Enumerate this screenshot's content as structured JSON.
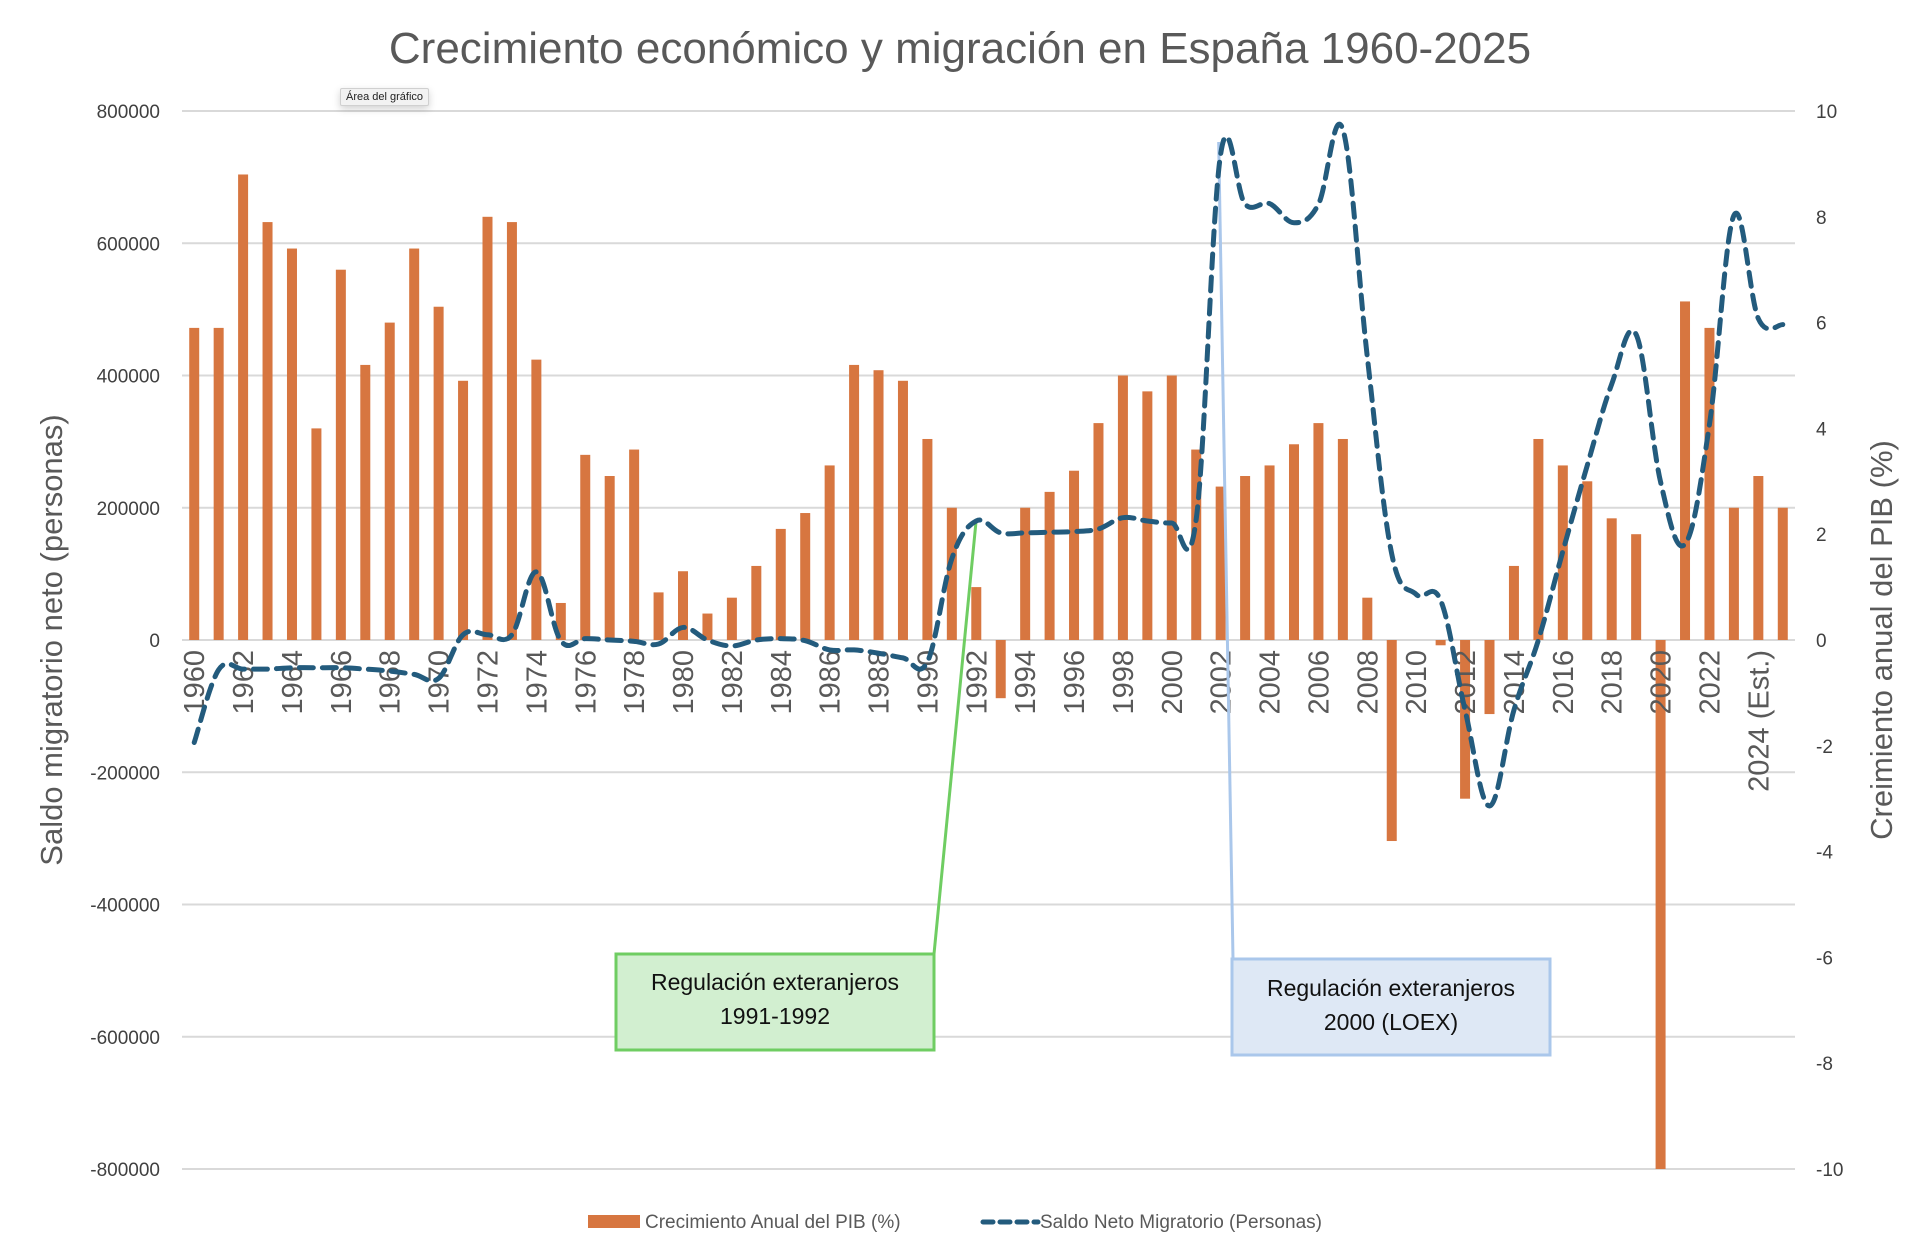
{
  "tooltip": "Área del gráfico",
  "colors": {
    "bar": "#D77640",
    "line": "#235B7D",
    "grid": "#D9D9D9",
    "note1_fill": "#D2EFD0",
    "note1_border": "#6FCD62",
    "note2_fill": "#DEE8F5",
    "note2_border": "#AAC7EB"
  },
  "chart_data": {
    "type": "bar+line",
    "title": "Crecimiento económico y migración en España 1960-2025",
    "xlabel": "",
    "ylabel_left": "Saldo migratorio neto (personas)",
    "ylabel_right": "Creimiento anual del PIB (%)",
    "ylim_left": [
      -800000,
      800000
    ],
    "ylim_right": [
      -10,
      10
    ],
    "yticks_left": [
      800000,
      600000,
      400000,
      200000,
      0,
      -200000,
      -400000,
      -600000,
      -800000
    ],
    "yticks_left_labels": [
      "800000",
      "600000",
      "400000",
      "200000",
      "0",
      "-200000",
      "-400000",
      "-600000",
      "-800000"
    ],
    "yticks_right": [
      10,
      8,
      6,
      4,
      2,
      0,
      -2,
      -4,
      -6,
      -8,
      -10
    ],
    "yticks_right_labels": [
      "10",
      "8",
      "6",
      "4",
      "2",
      "0",
      "-2",
      "-4",
      "-6",
      "-8",
      "-10"
    ],
    "grid": true,
    "legend_position": "bottom",
    "categories": [
      "1960",
      "1961",
      "1962",
      "1963",
      "1964",
      "1965",
      "1966",
      "1967",
      "1968",
      "1969",
      "1970",
      "1971",
      "1972",
      "1973",
      "1974",
      "1975",
      "1976",
      "1977",
      "1978",
      "1979",
      "1980",
      "1981",
      "1982",
      "1983",
      "1984",
      "1985",
      "1986",
      "1987",
      "1988",
      "1989",
      "1990",
      "1991",
      "1992",
      "1993",
      "1994",
      "1995",
      "1996",
      "1997",
      "1998",
      "1999",
      "2000",
      "2001",
      "2002",
      "2003",
      "2004",
      "2005",
      "2006",
      "2007",
      "2008",
      "2009",
      "2010",
      "2011",
      "2012",
      "2013",
      "2014",
      "2015",
      "2016",
      "2017",
      "2018",
      "2019",
      "2020",
      "2021",
      "2022",
      "2023",
      "2024",
      "2025"
    ],
    "tick_labels": [
      "1960",
      "1962",
      "1964",
      "1966",
      "1968",
      "1970",
      "1972",
      "1974",
      "1976",
      "1978",
      "1980",
      "1982",
      "1984",
      "1986",
      "1988",
      "1990",
      "1992",
      "1994",
      "1996",
      "1998",
      "2000",
      "2002",
      "2004",
      "2006",
      "2008",
      "2010",
      "2012",
      "2014",
      "2016",
      "2018",
      "2020",
      "2022",
      "2024 (Est.)"
    ],
    "tick_label_indices": [
      0,
      2,
      4,
      6,
      8,
      10,
      12,
      14,
      16,
      18,
      20,
      22,
      24,
      26,
      28,
      30,
      32,
      34,
      36,
      38,
      40,
      42,
      44,
      46,
      48,
      50,
      52,
      54,
      56,
      58,
      60,
      62,
      64
    ],
    "series": [
      {
        "name": "Crecimiento Anual del PIB (%)",
        "type": "bar",
        "axis": "right",
        "values": [
          5.9,
          5.9,
          8.8,
          7.9,
          7.4,
          4.0,
          7.0,
          5.2,
          6.0,
          7.4,
          6.3,
          4.9,
          8.0,
          7.9,
          5.3,
          0.7,
          3.5,
          3.1,
          3.6,
          0.9,
          1.3,
          0.5,
          0.8,
          1.4,
          2.1,
          2.4,
          3.3,
          5.2,
          5.1,
          4.9,
          3.8,
          2.5,
          1.0,
          -1.1,
          2.5,
          2.8,
          3.2,
          4.1,
          5.0,
          4.7,
          5.0,
          3.6,
          2.9,
          3.1,
          3.3,
          3.7,
          4.1,
          3.8,
          0.8,
          -3.8,
          0.0,
          -0.1,
          -3.0,
          -1.4,
          1.4,
          3.8,
          3.3,
          3.0,
          2.3,
          2.0,
          -10.0,
          6.4,
          5.9,
          2.5,
          3.1,
          2.5
        ]
      },
      {
        "name": "Saldo Neto Migratorio (Personas)",
        "type": "line",
        "axis": "left",
        "style": "dashed",
        "values": [
          -155000,
          -45000,
          -44000,
          -44000,
          -42000,
          -42000,
          -42000,
          -44000,
          -47000,
          -52000,
          -58000,
          8000,
          8000,
          8000,
          103000,
          -1000,
          2000,
          0,
          -2000,
          -6000,
          19000,
          0,
          -9000,
          0,
          2000,
          -1000,
          -15000,
          -15000,
          -20000,
          -27000,
          -33000,
          123000,
          180000,
          162000,
          162000,
          163000,
          164000,
          168000,
          185000,
          180000,
          177000,
          183000,
          735000,
          659000,
          660000,
          631000,
          659000,
          772000,
          428000,
          130000,
          69000,
          60000,
          -106000,
          -251000,
          -106000,
          0,
          134000,
          264000,
          387000,
          462000,
          239000,
          145000,
          326000,
          642000,
          486000,
          477000
        ]
      }
    ],
    "annotations": [
      {
        "text_line1": "Regulación exteranjeros",
        "text_line2": "1991-1992",
        "points_to": "1992"
      },
      {
        "text_line1": "Regulación exteranjeros",
        "text_line2": "2000 (LOEX)",
        "points_to": "2002"
      }
    ]
  }
}
